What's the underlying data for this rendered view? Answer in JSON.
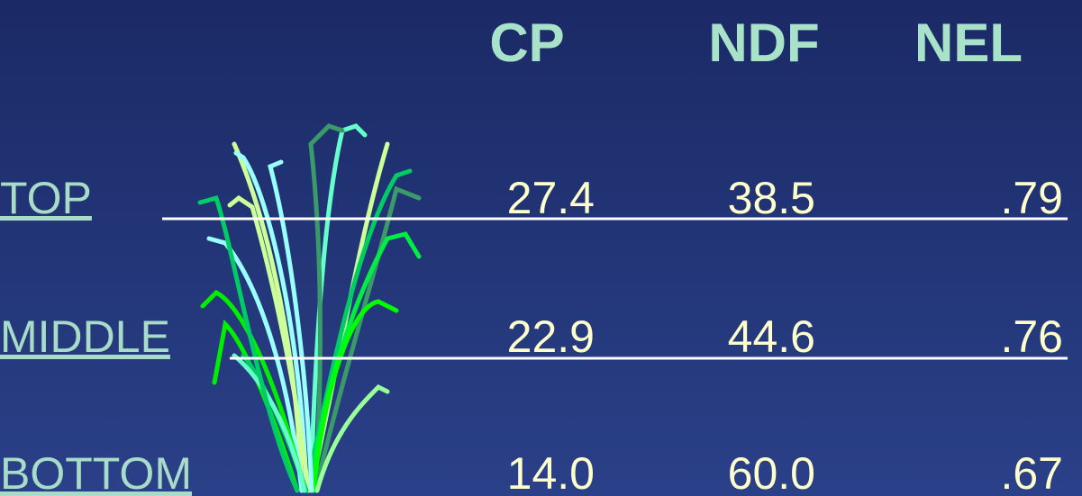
{
  "table": {
    "headers": [
      "CP",
      "NDF",
      "NEL"
    ],
    "rows": [
      {
        "label": "TOP",
        "values": [
          "27.4",
          "38.5",
          ".79"
        ]
      },
      {
        "label": "MIDDLE",
        "values": [
          "22.9",
          "44.6",
          ".76"
        ]
      },
      {
        "label": "BOTTOM",
        "values": [
          "14.0",
          "60.0",
          ".67"
        ]
      }
    ]
  }
}
